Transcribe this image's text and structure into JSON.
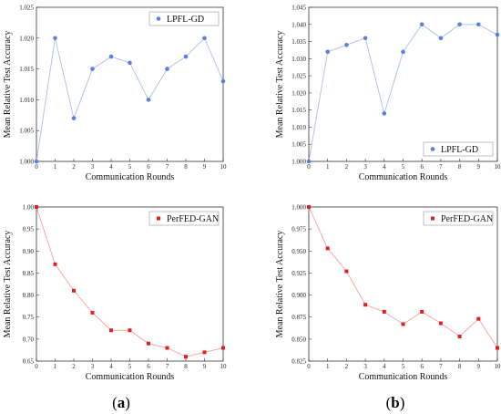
{
  "captions": [
    {
      "open": "(",
      "letter": "a",
      "close": ")"
    },
    {
      "open": "(",
      "letter": "b",
      "close": ")"
    }
  ],
  "chart_data": [
    {
      "type": "line",
      "xlabel": "Communication Rounds",
      "ylabel": "Mean Relative Test Accuracy",
      "x": [
        0,
        1,
        2,
        3,
        4,
        5,
        6,
        7,
        8,
        9,
        10
      ],
      "xticks": [
        "0",
        "1",
        "2",
        "3",
        "4",
        "5",
        "6",
        "7",
        "8",
        "9",
        "10"
      ],
      "xlim": [
        0,
        10
      ],
      "ylim": [
        1.0,
        1.025
      ],
      "yticks": [
        "1.000",
        "1.005",
        "1.010",
        "1.015",
        "1.020",
        "1.025"
      ],
      "yticks_values": [
        1.0,
        1.005,
        1.01,
        1.015,
        1.02,
        1.025
      ],
      "legend_position": "top-right",
      "grid": false,
      "series": [
        {
          "name": "LPFL-GD",
          "marker": "circle",
          "color": "#5b7fe0",
          "line_color": "#a9bdf0",
          "values": [
            1.0,
            1.02,
            1.007,
            1.015,
            1.017,
            1.016,
            1.01,
            1.015,
            1.017,
            1.02,
            1.013
          ]
        }
      ]
    },
    {
      "type": "line",
      "xlabel": "Communication Rounds",
      "ylabel": "Mean Relative Test Accuracy",
      "x": [
        0,
        1,
        2,
        3,
        4,
        5,
        6,
        7,
        8,
        9,
        10
      ],
      "xticks": [
        "0",
        "1",
        "2",
        "3",
        "4",
        "5",
        "6",
        "7",
        "8",
        "9",
        "10"
      ],
      "xlim": [
        0,
        10
      ],
      "ylim": [
        1.0,
        1.045
      ],
      "yticks": [
        "1.000",
        "1.005",
        "1.010",
        "1.015",
        "1.020",
        "1.025",
        "1.030",
        "1.035",
        "1.040",
        "1.045"
      ],
      "yticks_values": [
        1.0,
        1.005,
        1.01,
        1.015,
        1.02,
        1.025,
        1.03,
        1.035,
        1.04,
        1.045
      ],
      "legend_position": "bottom-right",
      "grid": false,
      "series": [
        {
          "name": "LPFL-GD",
          "marker": "circle",
          "color": "#5b7fe0",
          "line_color": "#a9bdf0",
          "values": [
            1.0,
            1.032,
            1.034,
            1.036,
            1.014,
            1.032,
            1.04,
            1.036,
            1.04,
            1.04,
            1.037
          ]
        }
      ]
    },
    {
      "type": "line",
      "xlabel": "Communication Rounds",
      "ylabel": "Mean Relative Test Accuracy",
      "x": [
        0,
        1,
        2,
        3,
        4,
        5,
        6,
        7,
        8,
        9,
        10
      ],
      "xticks": [
        "0",
        "1",
        "2",
        "3",
        "4",
        "5",
        "6",
        "7",
        "8",
        "9",
        "10"
      ],
      "xlim": [
        0,
        10
      ],
      "ylim": [
        0.65,
        1.0
      ],
      "yticks": [
        "0.65",
        "0.70",
        "0.75",
        "0.80",
        "0.85",
        "0.90",
        "0.95",
        "1.00"
      ],
      "yticks_values": [
        0.65,
        0.7,
        0.75,
        0.8,
        0.85,
        0.9,
        0.95,
        1.0
      ],
      "legend_position": "top-right",
      "grid": false,
      "series": [
        {
          "name": "PerFED-GAN",
          "marker": "square",
          "color": "#e02020",
          "line_color": "#f2a0a0",
          "values": [
            1.0,
            0.87,
            0.81,
            0.76,
            0.72,
            0.72,
            0.69,
            0.68,
            0.66,
            0.67,
            0.68
          ]
        }
      ]
    },
    {
      "type": "line",
      "xlabel": "Communication Rounds",
      "ylabel": "Mean Relative Test Accuracy",
      "x": [
        0,
        1,
        2,
        3,
        4,
        5,
        6,
        7,
        8,
        9,
        10
      ],
      "xticks": [
        "0",
        "1",
        "2",
        "3",
        "4",
        "5",
        "6",
        "7",
        "8",
        "9",
        "10"
      ],
      "xlim": [
        0,
        10
      ],
      "ylim": [
        0.825,
        1.0
      ],
      "yticks": [
        "0.825",
        "0.850",
        "0.875",
        "0.900",
        "0.925",
        "0.950",
        "0.975",
        "1.000"
      ],
      "yticks_values": [
        0.825,
        0.85,
        0.875,
        0.9,
        0.925,
        0.95,
        0.975,
        1.0
      ],
      "legend_position": "top-right",
      "grid": false,
      "series": [
        {
          "name": "PerFED-GAN",
          "marker": "square",
          "color": "#e02020",
          "line_color": "#f2a0a0",
          "values": [
            1.0,
            0.953,
            0.927,
            0.889,
            0.881,
            0.867,
            0.881,
            0.868,
            0.853,
            0.873,
            0.84
          ]
        }
      ]
    }
  ]
}
